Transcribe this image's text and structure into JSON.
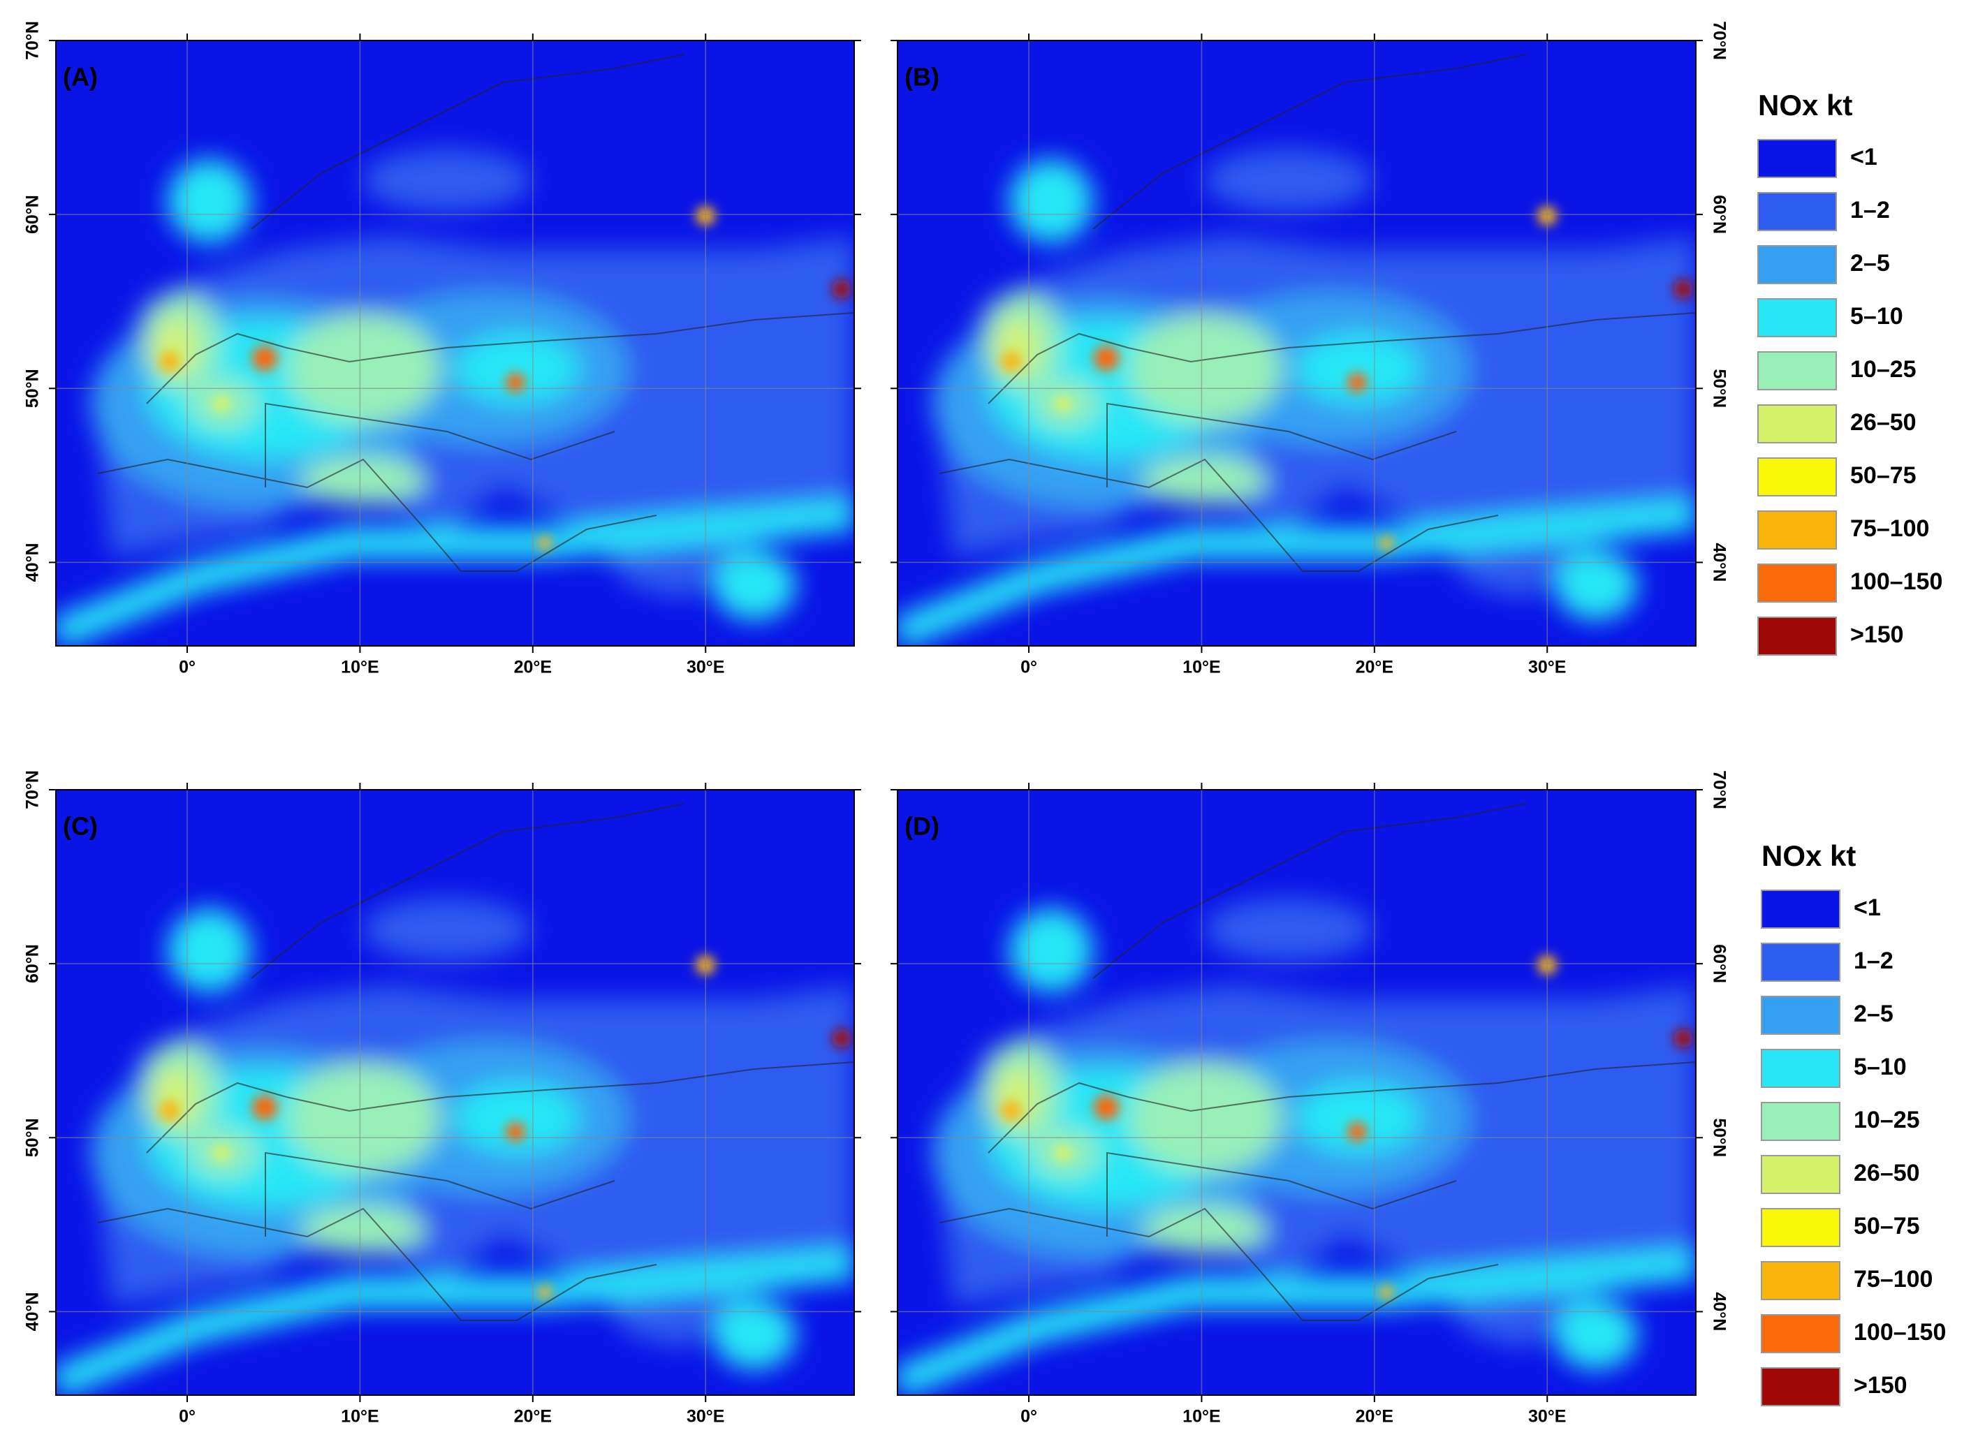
{
  "panels": [
    {
      "label": "(A)"
    },
    {
      "label": "(B)"
    },
    {
      "label": "(C)"
    },
    {
      "label": "(D)"
    }
  ],
  "axes": {
    "xlim": [
      -7.6,
      38.6
    ],
    "ylim": [
      35.2,
      70
    ],
    "xticks": [
      {
        "value": 0,
        "label": "0°"
      },
      {
        "value": 10,
        "label": "10°E"
      },
      {
        "value": 20,
        "label": "20°E"
      },
      {
        "value": 30,
        "label": "30°E"
      }
    ],
    "yticks": [
      {
        "value": 40,
        "label": "40°N"
      },
      {
        "value": 50,
        "label": "50°N"
      },
      {
        "value": 60,
        "label": "60°N"
      },
      {
        "value": 70,
        "label": "70°N"
      }
    ]
  },
  "legends": [
    {
      "title": "NOx kt",
      "items": [
        {
          "label": "<1",
          "color": "#0a14e6"
        },
        {
          "label": "1–2",
          "color": "#2f5cf0"
        },
        {
          "label": "2–5",
          "color": "#35a0f2"
        },
        {
          "label": "5–10",
          "color": "#28e6f6"
        },
        {
          "label": "10–25",
          "color": "#98f0b8"
        },
        {
          "label": "26–50",
          "color": "#d6f26a"
        },
        {
          "label": "50–75",
          "color": "#f8f808"
        },
        {
          "label": "75–100",
          "color": "#fbb40c"
        },
        {
          "label": "100–150",
          "color": "#f86a0a"
        },
        {
          "label": ">150",
          "color": "#a00808"
        }
      ]
    },
    {
      "title": "NOx kt",
      "items": [
        {
          "label": "<1",
          "color": "#0a14e6"
        },
        {
          "label": "1–2",
          "color": "#2f5cf0"
        },
        {
          "label": "2–5",
          "color": "#35a0f2"
        },
        {
          "label": "5–10",
          "color": "#28e6f6"
        },
        {
          "label": "10–25",
          "color": "#98f0b8"
        },
        {
          "label": "26–50",
          "color": "#d6f26a"
        },
        {
          "label": "50–75",
          "color": "#f8f808"
        },
        {
          "label": "75–100",
          "color": "#fbb40c"
        },
        {
          "label": "100–150",
          "color": "#f86a0a"
        },
        {
          "label": ">150",
          "color": "#a00808"
        }
      ]
    }
  ]
}
